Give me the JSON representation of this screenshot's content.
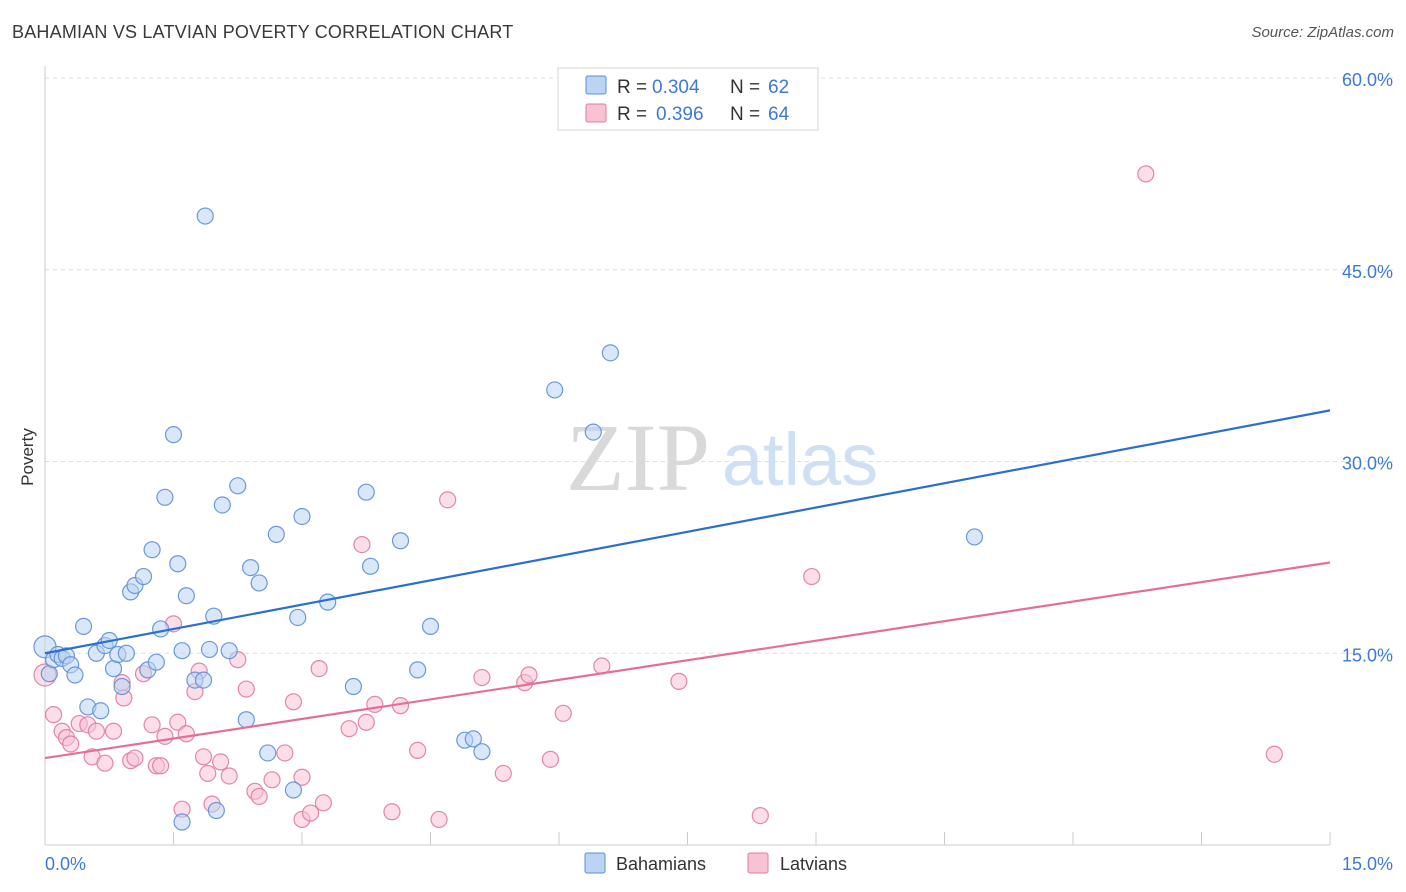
{
  "header": {
    "title": "BAHAMIAN VS LATVIAN POVERTY CORRELATION CHART",
    "source": "Source: ZipAtlas.com"
  },
  "watermark": {
    "zip": "ZIP",
    "atlas": "atlas"
  },
  "colors": {
    "blue": "#5b8fd6",
    "blue_fill": "#bcd4f3",
    "blue_line": "#2a6fd0",
    "pink": "#e07aa0",
    "pink_fill": "#f7c3d4",
    "pink_line": "#e56e99",
    "tick_text": "#3d7ad6",
    "grid": "#dddddd"
  },
  "legend_box": {
    "r_label": "R =",
    "n_label": "N =",
    "rows": [
      {
        "r": "0.304",
        "n": "62"
      },
      {
        "r": "0.396",
        "n": "64"
      }
    ]
  },
  "chart_data": {
    "type": "scatter",
    "title": "BAHAMIAN VS LATVIAN POVERTY CORRELATION CHART",
    "xlabel": "",
    "ylabel": "Poverty",
    "xlim": [
      0,
      15
    ],
    "ylim": [
      0,
      60
    ],
    "x_tick_labels": [
      "0.0%",
      "15.0%"
    ],
    "y_ticks": [
      15,
      30,
      45,
      60
    ],
    "y_tick_labels": [
      "15.0%",
      "30.0%",
      "45.0%",
      "60.0%"
    ],
    "grid": true,
    "legend_position": "bottom",
    "series": [
      {
        "name": "Bahamians",
        "r": 0.304,
        "n": 62,
        "trend": [
          [
            0,
            15.0
          ],
          [
            15,
            34.0
          ]
        ],
        "points": [
          [
            0.0,
            15.5
          ],
          [
            0.05,
            13.4
          ],
          [
            0.1,
            14.5
          ],
          [
            0.15,
            14.9
          ],
          [
            0.2,
            14.6
          ],
          [
            0.25,
            14.8
          ],
          [
            0.3,
            14.1
          ],
          [
            0.35,
            13.3
          ],
          [
            0.45,
            17.1
          ],
          [
            0.5,
            10.8
          ],
          [
            0.6,
            15.0
          ],
          [
            0.65,
            10.5
          ],
          [
            0.7,
            15.6
          ],
          [
            0.75,
            16.0
          ],
          [
            0.8,
            13.8
          ],
          [
            0.85,
            14.9
          ],
          [
            0.9,
            12.4
          ],
          [
            0.95,
            15.0
          ],
          [
            1.0,
            19.8
          ],
          [
            1.05,
            20.3
          ],
          [
            1.15,
            21.0
          ],
          [
            1.2,
            13.7
          ],
          [
            1.25,
            23.1
          ],
          [
            1.3,
            14.3
          ],
          [
            1.35,
            16.9
          ],
          [
            1.4,
            27.2
          ],
          [
            1.5,
            32.1
          ],
          [
            1.55,
            22.0
          ],
          [
            1.6,
            15.2
          ],
          [
            1.65,
            19.5
          ],
          [
            1.6,
            1.8
          ],
          [
            1.75,
            12.9
          ],
          [
            1.85,
            12.9
          ],
          [
            1.87,
            49.2
          ],
          [
            1.92,
            15.3
          ],
          [
            1.97,
            17.9
          ],
          [
            2.0,
            2.7
          ],
          [
            2.07,
            26.6
          ],
          [
            2.15,
            15.2
          ],
          [
            2.25,
            28.1
          ],
          [
            2.35,
            9.8
          ],
          [
            2.4,
            21.7
          ],
          [
            2.5,
            20.5
          ],
          [
            2.6,
            7.2
          ],
          [
            2.7,
            24.3
          ],
          [
            2.9,
            4.3
          ],
          [
            2.95,
            17.8
          ],
          [
            3.0,
            25.7
          ],
          [
            3.3,
            19.0
          ],
          [
            3.6,
            12.4
          ],
          [
            3.75,
            27.6
          ],
          [
            3.8,
            21.8
          ],
          [
            4.15,
            23.8
          ],
          [
            4.35,
            13.7
          ],
          [
            4.5,
            17.1
          ],
          [
            4.9,
            8.2
          ],
          [
            5.0,
            8.3
          ],
          [
            5.1,
            7.3
          ],
          [
            5.95,
            35.6
          ],
          [
            6.4,
            32.3
          ],
          [
            6.6,
            38.5
          ],
          [
            10.85,
            24.1
          ]
        ]
      },
      {
        "name": "Latvians",
        "r": 0.396,
        "n": 64,
        "trend": [
          [
            0,
            6.8
          ],
          [
            15,
            22.1
          ]
        ],
        "points": [
          [
            0.0,
            13.3
          ],
          [
            0.1,
            10.2
          ],
          [
            0.2,
            8.9
          ],
          [
            0.25,
            8.4
          ],
          [
            0.3,
            7.9
          ],
          [
            0.4,
            9.5
          ],
          [
            0.5,
            9.4
          ],
          [
            0.55,
            6.9
          ],
          [
            0.6,
            8.9
          ],
          [
            0.7,
            6.4
          ],
          [
            0.8,
            8.9
          ],
          [
            0.9,
            12.7
          ],
          [
            0.92,
            11.5
          ],
          [
            1.0,
            6.6
          ],
          [
            1.05,
            6.8
          ],
          [
            1.15,
            13.4
          ],
          [
            1.25,
            9.4
          ],
          [
            1.3,
            6.2
          ],
          [
            1.35,
            6.2
          ],
          [
            1.4,
            8.5
          ],
          [
            1.5,
            17.3
          ],
          [
            1.55,
            9.6
          ],
          [
            1.6,
            2.8
          ],
          [
            1.65,
            8.7
          ],
          [
            1.75,
            12.0
          ],
          [
            1.8,
            13.6
          ],
          [
            1.85,
            6.9
          ],
          [
            1.9,
            5.6
          ],
          [
            1.95,
            3.2
          ],
          [
            2.05,
            6.5
          ],
          [
            2.15,
            5.4
          ],
          [
            2.25,
            14.5
          ],
          [
            2.35,
            12.2
          ],
          [
            2.45,
            4.2
          ],
          [
            2.5,
            3.8
          ],
          [
            2.65,
            5.1
          ],
          [
            2.8,
            7.2
          ],
          [
            2.9,
            11.2
          ],
          [
            3.0,
            5.3
          ],
          [
            3.0,
            2.0
          ],
          [
            3.1,
            2.5
          ],
          [
            3.2,
            13.8
          ],
          [
            3.25,
            3.3
          ],
          [
            3.55,
            9.1
          ],
          [
            3.7,
            23.5
          ],
          [
            3.75,
            9.6
          ],
          [
            3.85,
            11.0
          ],
          [
            4.05,
            2.6
          ],
          [
            4.15,
            10.9
          ],
          [
            4.35,
            7.4
          ],
          [
            4.6,
            2.0
          ],
          [
            4.7,
            27.0
          ],
          [
            5.1,
            13.1
          ],
          [
            5.35,
            5.6
          ],
          [
            5.6,
            12.7
          ],
          [
            5.65,
            13.3
          ],
          [
            5.9,
            6.7
          ],
          [
            6.05,
            10.3
          ],
          [
            6.5,
            14.0
          ],
          [
            7.4,
            12.8
          ],
          [
            8.35,
            2.3
          ],
          [
            8.95,
            21.0
          ],
          [
            12.85,
            52.5
          ],
          [
            14.35,
            7.1
          ]
        ]
      }
    ]
  }
}
